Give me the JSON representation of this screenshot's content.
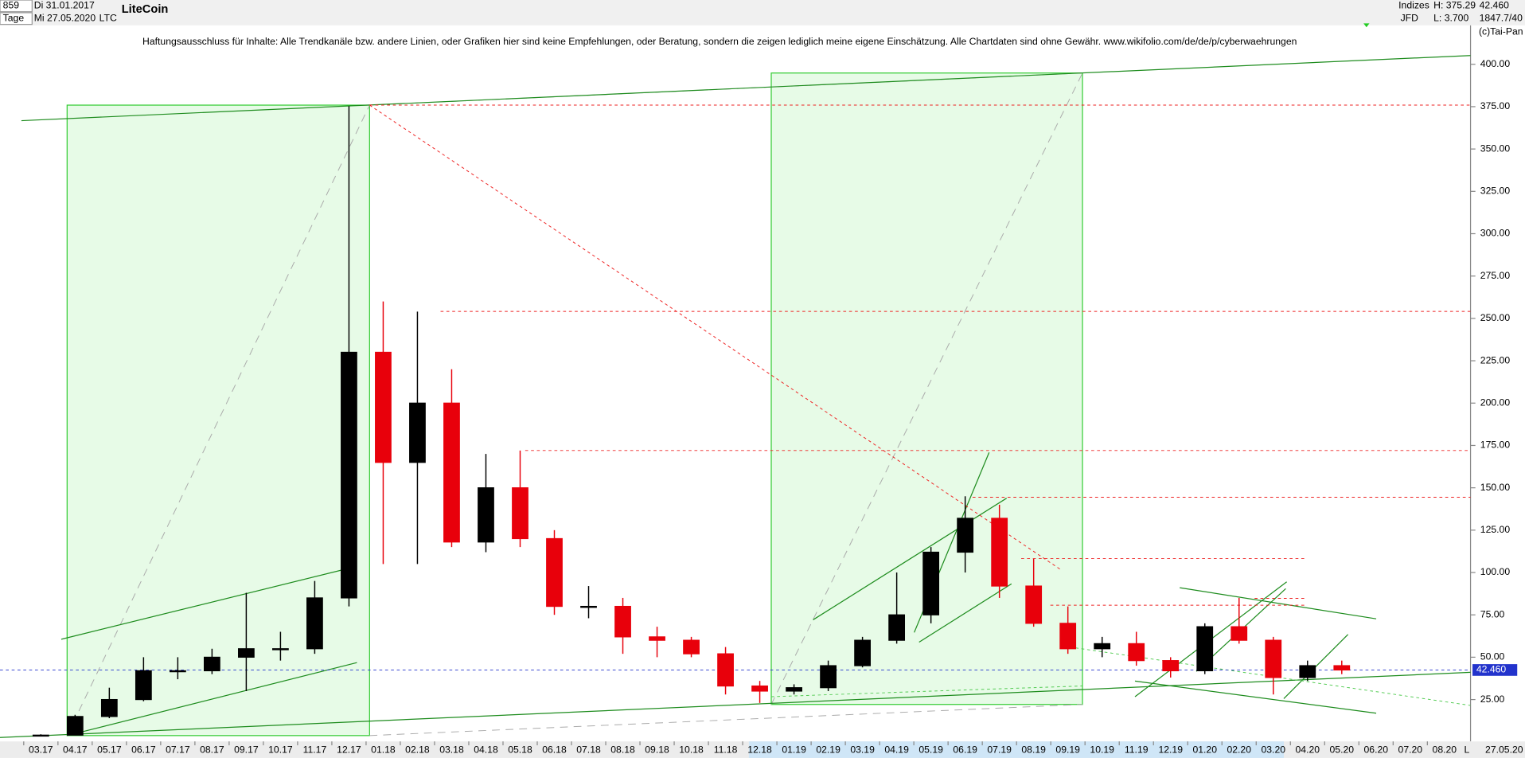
{
  "header": {
    "id": "859",
    "start_date": "Di 31.01.2017",
    "period": "Tage",
    "end_date": "Mi 27.05.2020",
    "symbol": "LTC",
    "name": "LiteCoin",
    "exchange": "Indizes",
    "high": "H: 375.29",
    "last": "42.460",
    "broker": "JFD",
    "low": "L: 3.700",
    "ratio": "1847.7/40",
    "copyright": "(c)Tai-Pan"
  },
  "chart_data": {
    "type": "candlestick",
    "title": "Haftungsausschluss für Inhalte: Alle Trendkanäle bzw. andere Linien, oder Grafiken hier sind keine Empfehlungen, oder Beratung, sondern die zeigen lediglich meine eigene Einschätzung. Alle Chartdaten sind ohne Gewähr.  www.wikifolio.com/de/de/p/cyberwaehrungen",
    "categories": [
      "03.17",
      "04.17",
      "05.17",
      "06.17",
      "07.17",
      "08.17",
      "09.17",
      "10.17",
      "11.17",
      "12.17",
      "01.18",
      "02.18",
      "03.18",
      "04.18",
      "05.18",
      "06.18",
      "07.18",
      "08.18",
      "09.18",
      "10.18",
      "11.18",
      "12.18",
      "01.19",
      "02.19",
      "03.19",
      "04.19",
      "05.19",
      "06.19",
      "07.19",
      "08.19",
      "09.19",
      "10.19",
      "11.19",
      "12.19",
      "01.20",
      "02.20",
      "03.20",
      "04.20",
      "05.20",
      "06.20",
      "07.20",
      "08.20"
    ],
    "open": [
      3.9,
      4,
      15,
      25,
      42,
      42,
      50,
      55,
      55,
      85,
      230,
      165,
      200,
      118,
      150,
      120,
      80,
      80,
      62,
      60,
      52,
      33,
      30,
      32,
      45,
      60,
      75,
      112,
      132,
      92,
      70,
      55,
      58,
      48,
      42,
      68,
      60,
      38,
      45,
      null,
      null,
      null
    ],
    "high": [
      4.5,
      16,
      32,
      50,
      50,
      55,
      88,
      65,
      95,
      375.29,
      260,
      254,
      220,
      170,
      172,
      125,
      92,
      85,
      68,
      62,
      56,
      36,
      34,
      48,
      62,
      100,
      115,
      145,
      140,
      108,
      80,
      62,
      65,
      50,
      70,
      85,
      62,
      48,
      48,
      null,
      null,
      null
    ],
    "low": [
      3.7,
      4,
      14,
      24,
      37,
      40,
      30,
      48,
      52,
      80,
      105,
      105,
      115,
      112,
      115,
      75,
      73,
      52,
      50,
      50,
      28,
      23,
      28,
      30,
      44,
      58,
      70,
      100,
      85,
      68,
      52,
      50,
      45,
      38,
      40,
      58,
      28,
      36,
      40,
      null,
      null,
      null
    ],
    "close": [
      4,
      15,
      25,
      42,
      42,
      50,
      55,
      55,
      85,
      230,
      165,
      200,
      118,
      150,
      120,
      80,
      80,
      62,
      60,
      52,
      33,
      30,
      32,
      45,
      60,
      75,
      112,
      132,
      92,
      70,
      55,
      58,
      48,
      42,
      68,
      60,
      38,
      45,
      42.46,
      null,
      null,
      null
    ],
    "up_color": "#000000",
    "down_color": "#e8000b",
    "end_label": "27.05.20",
    "scale_label": "L",
    "current": {
      "value": 42.46,
      "label": "42.460"
    },
    "ylim": [
      0,
      423
    ],
    "yticks": [
      {
        "value": 25,
        "label": "25.00"
      },
      {
        "value": 50,
        "label": "50.00"
      },
      {
        "value": 75,
        "label": "75.00"
      },
      {
        "value": 100,
        "label": "100.00"
      },
      {
        "value": 125,
        "label": "125.00"
      },
      {
        "value": 150,
        "label": "150.00"
      },
      {
        "value": 175,
        "label": "175.00"
      },
      {
        "value": 200,
        "label": "200.00"
      },
      {
        "value": 225,
        "label": "225.00"
      },
      {
        "value": 250,
        "label": "250.00"
      },
      {
        "value": 275,
        "label": "275.00"
      },
      {
        "value": 300,
        "label": "300.00"
      },
      {
        "value": 325,
        "label": "325.00"
      },
      {
        "value": 350,
        "label": "350.00"
      },
      {
        "value": 375,
        "label": "375.00"
      },
      {
        "value": 400,
        "label": "400.00"
      }
    ]
  }
}
